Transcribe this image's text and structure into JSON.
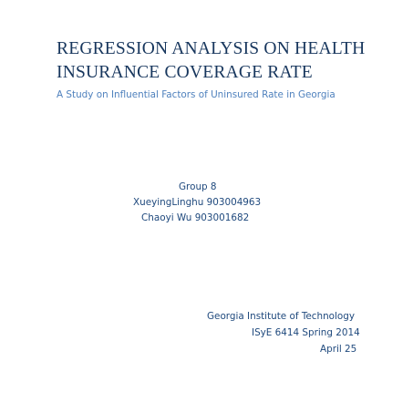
{
  "document": {
    "title_lines": [
      "REGRESSION ANALYSIS ON HEALTH",
      "INSURANCE COVERAGE RATE"
    ],
    "subtitle": "A Study on Influential Factors of Uninsured Rate in Georgia",
    "authors": {
      "group": "Group 8",
      "member_1": "XueyingLinghu 903004963",
      "member_2": "Chaoyi Wu 903001682"
    },
    "info": {
      "institution": "Georgia Institute of Technology",
      "course": "ISyE 6414 Spring 2014",
      "date": "April 25"
    },
    "colors": {
      "title": "#17365d",
      "subtitle": "#4f81bd",
      "body": "#1f497d"
    }
  }
}
